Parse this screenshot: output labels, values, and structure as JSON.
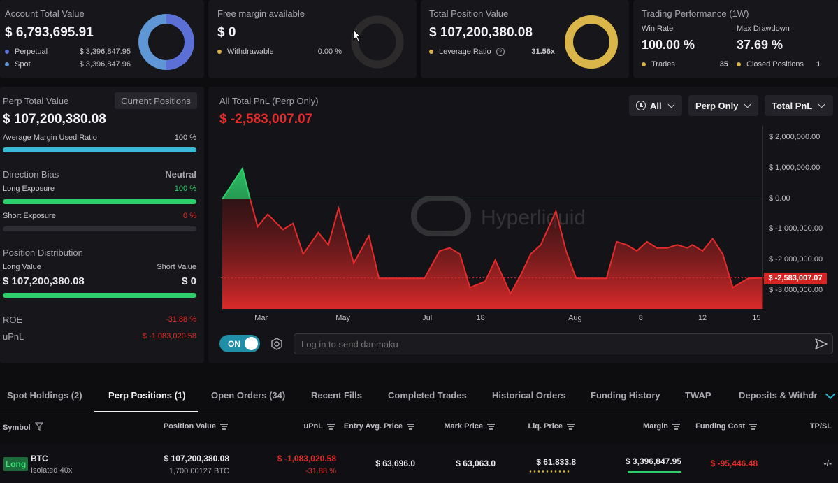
{
  "account": {
    "label": "Account Total Value",
    "value": "$ 6,793,695.91",
    "perpetual_label": "Perpetual",
    "perpetual_value": "$ 3,396,847.95",
    "spot_label": "Spot",
    "spot_value": "$ 3,396,847.96",
    "color_perp": "#5b6fd6",
    "color_spot": "#5f97d6"
  },
  "margin": {
    "label": "Free margin available",
    "value": "$ 0",
    "withdrawable_label": "Withdrawable",
    "withdrawable_value": "0.00 %"
  },
  "position": {
    "label": "Total Position Value",
    "value": "$ 107,200,380.08",
    "leverage_label": "Leverage Ratio",
    "leverage_value": "31.56x",
    "color": "#d9b54a"
  },
  "performance": {
    "label": "Trading Performance (1W)",
    "win_rate_label": "Win Rate",
    "win_rate_value": "100.00 %",
    "drawdown_label": "Max Drawdown",
    "drawdown_value": "37.69 %",
    "trades_label": "Trades",
    "trades_value": "35",
    "closed_label": "Closed Positions",
    "closed_value": "1"
  },
  "perp": {
    "total_label": "Perp Total Value",
    "current_positions_button": "Current Positions",
    "total_value": "$ 107,200,380.08",
    "avg_margin_label": "Average Margin Used Ratio",
    "avg_margin_value": "100 %",
    "avg_margin_fraction": 1.0,
    "direction_label": "Direction Bias",
    "direction_value": "Neutral",
    "long_exposure_label": "Long Exposure",
    "long_exposure_value": "100 %",
    "long_exposure_fraction": 1.0,
    "short_exposure_label": "Short Exposure",
    "short_exposure_value": "0 %",
    "short_exposure_fraction": 0.0,
    "distribution_label": "Position Distribution",
    "long_value_label": "Long Value",
    "short_value_label": "Short Value",
    "long_value": "$ 107,200,380.08",
    "short_value": "$ 0",
    "long_fraction": 1.0,
    "roe_label": "ROE",
    "roe_value": "-31.88 %",
    "upnl_label": "uPnL",
    "upnl_value": "$ -1,083,020.58"
  },
  "pnl_chart": {
    "title": "All Total PnL (Perp Only)",
    "value": "$ -2,583,007.07",
    "filter_time": "All",
    "filter_scope": "Perp Only",
    "filter_metric": "Total PnL",
    "watermark": "Hyperliquid",
    "current_tag": "$ -2,583,007.07",
    "colors": {
      "positive": "#2ecf6a",
      "negative": "#e52b2b"
    }
  },
  "chart_data": {
    "type": "area",
    "title": "All Total PnL (Perp Only)",
    "y_ticks": [
      "$ 2,000,000.00",
      "$ 1,000,000.00",
      "$ 0.00",
      "$ -1,000,000.00",
      "$ -2,000,000.00",
      "$ -3,000,000.00"
    ],
    "y_tick_values": [
      2000000,
      1000000,
      0,
      -1000000,
      -2000000,
      -3000000
    ],
    "ylim": [
      -3600000,
      2400000
    ],
    "x_ticks": [
      "Mar",
      "May",
      "Jul",
      "18",
      "Aug",
      "8",
      "12",
      "15"
    ],
    "x_tick_positions": [
      0.07,
      0.22,
      0.38,
      0.48,
      0.65,
      0.78,
      0.89,
      0.99
    ],
    "current_value": -2583007.07,
    "points": [
      [
        0.0,
        0
      ],
      [
        0.04,
        1000000
      ],
      [
        0.055,
        0
      ],
      [
        0.07,
        -900000
      ],
      [
        0.09,
        -500000
      ],
      [
        0.12,
        -1000000
      ],
      [
        0.14,
        -800000
      ],
      [
        0.16,
        -1800000
      ],
      [
        0.19,
        -1100000
      ],
      [
        0.21,
        -1500000
      ],
      [
        0.23,
        -300000
      ],
      [
        0.26,
        -2100000
      ],
      [
        0.29,
        -1200000
      ],
      [
        0.31,
        -2600000
      ],
      [
        0.34,
        -2600000
      ],
      [
        0.37,
        -2600000
      ],
      [
        0.4,
        -2600000
      ],
      [
        0.43,
        -1700000
      ],
      [
        0.45,
        -1600000
      ],
      [
        0.47,
        -1800000
      ],
      [
        0.49,
        -2900000
      ],
      [
        0.52,
        -2700000
      ],
      [
        0.54,
        -2000000
      ],
      [
        0.57,
        -3100000
      ],
      [
        0.59,
        -2500000
      ],
      [
        0.61,
        -1800000
      ],
      [
        0.63,
        -1500000
      ],
      [
        0.66,
        -400000
      ],
      [
        0.68,
        -1700000
      ],
      [
        0.7,
        -2600000
      ],
      [
        0.72,
        -2600000
      ],
      [
        0.74,
        -2600000
      ],
      [
        0.76,
        -2600000
      ],
      [
        0.78,
        -1400000
      ],
      [
        0.8,
        -1500000
      ],
      [
        0.82,
        -1700000
      ],
      [
        0.84,
        -1400000
      ],
      [
        0.86,
        -1600000
      ],
      [
        0.88,
        -1600000
      ],
      [
        0.9,
        -1500000
      ],
      [
        0.92,
        -1600000
      ],
      [
        0.93,
        -1500000
      ],
      [
        0.95,
        -1700000
      ],
      [
        0.97,
        -1300000
      ],
      [
        0.99,
        -1800000
      ],
      [
        1.01,
        -2900000
      ],
      [
        1.04,
        -2600000
      ],
      [
        1.07,
        -2583007
      ]
    ]
  },
  "danmaku": {
    "toggle_label": "ON",
    "placeholder": "Log in to send danmaku"
  },
  "tabs": [
    "Spot Holdings (2)",
    "Perp Positions (1)",
    "Open Orders (34)",
    "Recent Fills",
    "Completed Trades",
    "Historical Orders",
    "Funding History",
    "TWAP",
    "Deposits & Withdra"
  ],
  "table": {
    "headers": [
      "Symbol",
      "Position Value",
      "uPnL",
      "Entry Avg. Price",
      "Mark Price",
      "Liq. Price",
      "Margin",
      "Funding Cost",
      "TP/SL"
    ],
    "row": {
      "side": "Long",
      "symbol": "BTC",
      "mode": "Isolated 40x",
      "position_value": "$ 107,200,380.08",
      "position_size": "1,700.00127 BTC",
      "upnl": "$ -1,083,020.58",
      "upnl_pct": "-31.88 %",
      "entry_price": "$ 63,696.0",
      "mark_price": "$ 63,063.0",
      "liq_price": "$ 61,833.8",
      "margin": "$ 3,396,847.95",
      "funding_cost": "$ -95,446.48",
      "tpsl": "-/-"
    }
  }
}
